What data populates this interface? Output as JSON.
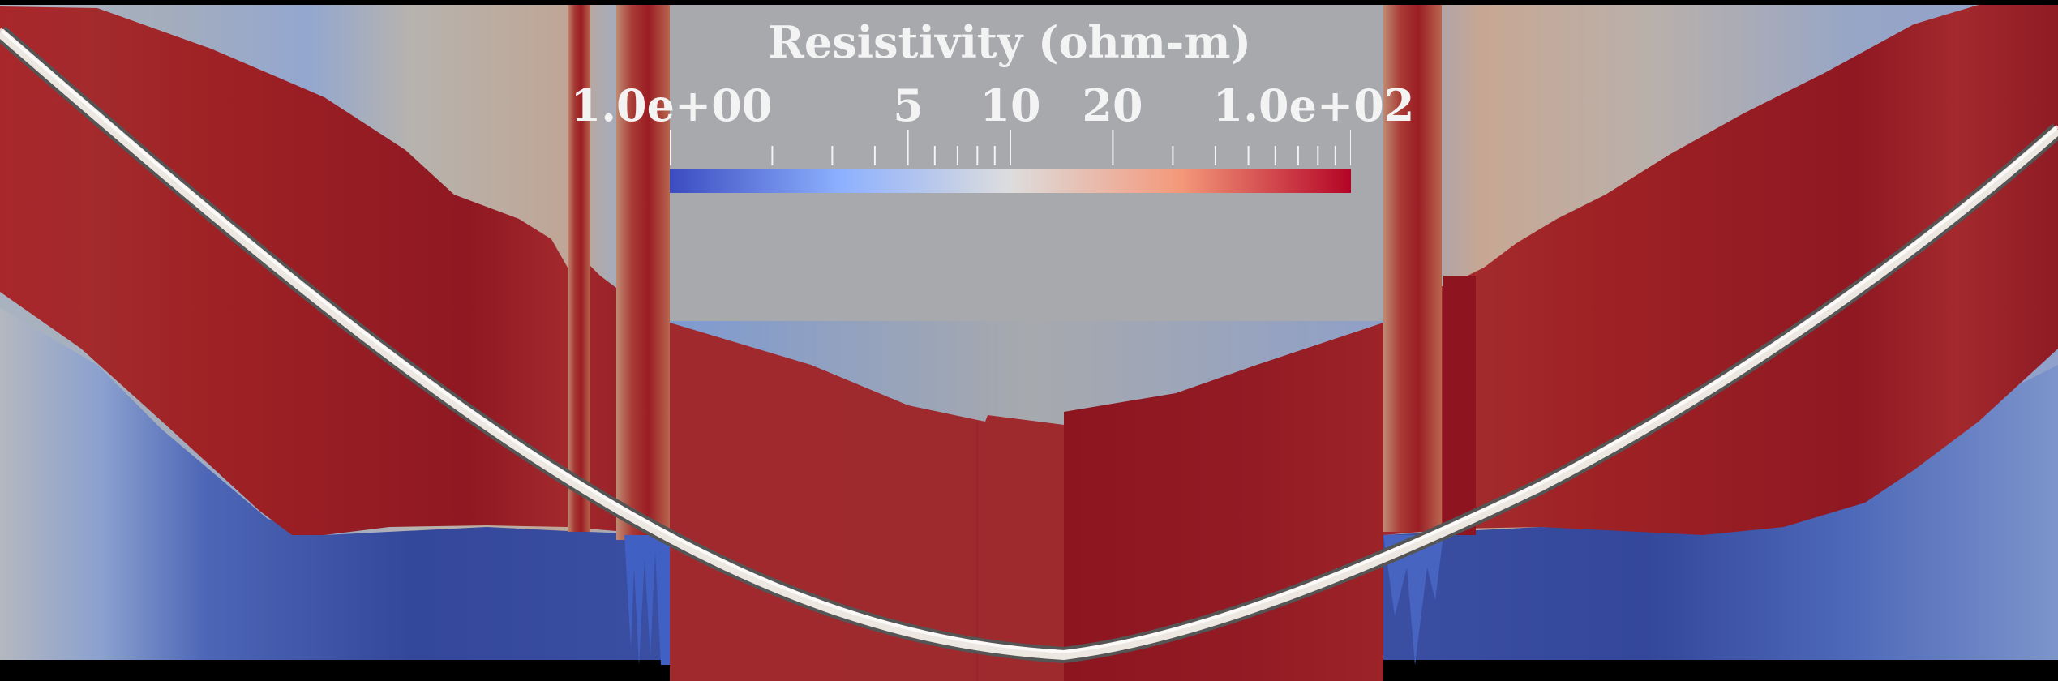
{
  "legend": {
    "title": "Resistivity (ohm-m)",
    "tick_labels": {
      "min": "1.0e+00",
      "t5": "5",
      "t10": "10",
      "t20": "20",
      "max": "1.0e+02"
    },
    "range": [
      1,
      100
    ],
    "scale": "log",
    "colormap": "cool-to-warm",
    "colors": {
      "low": "#3b4cc0",
      "mid": "#dddddd",
      "high": "#b40426"
    }
  }
}
